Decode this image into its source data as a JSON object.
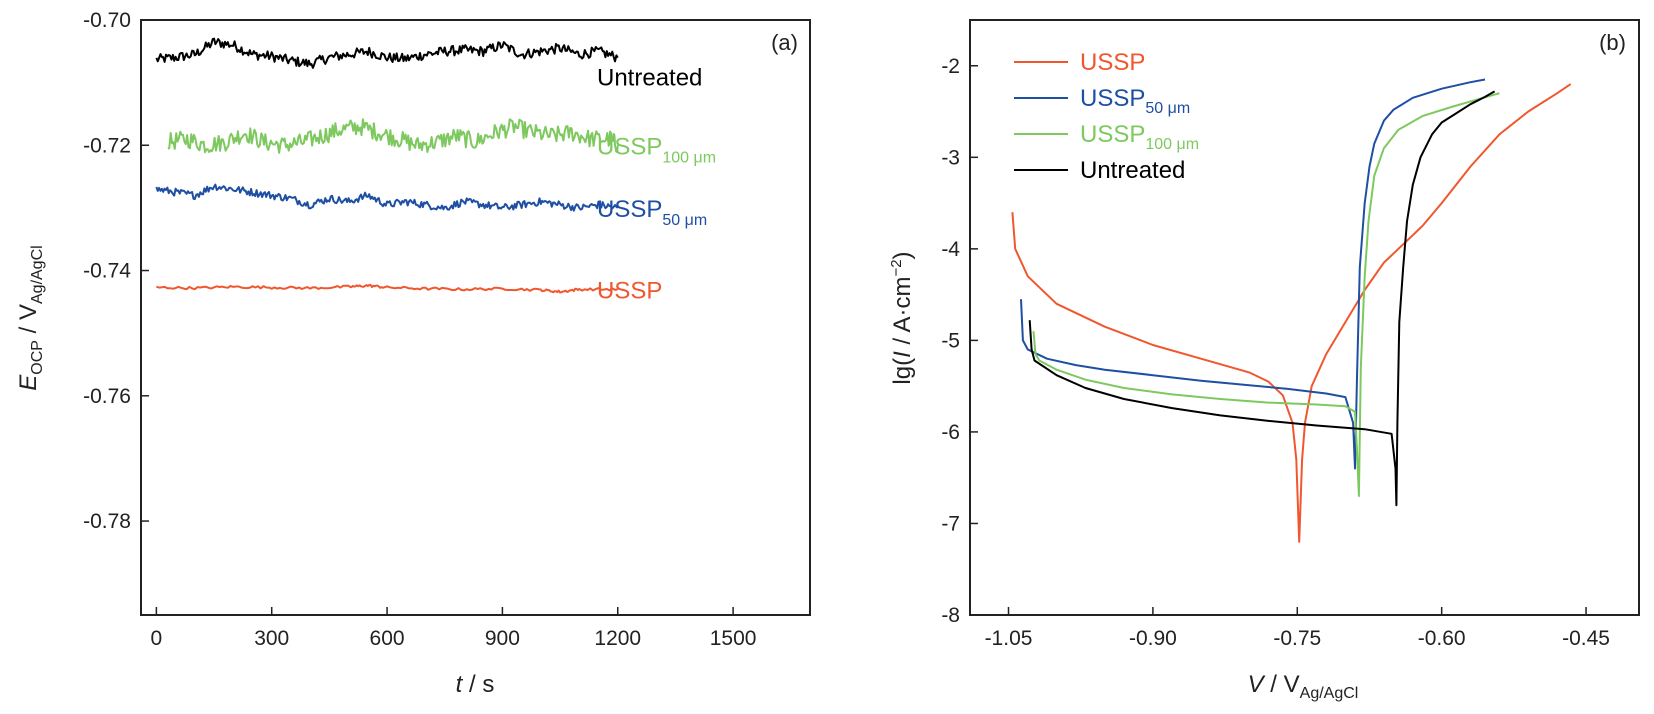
{
  "chart_data": [
    {
      "type": "line",
      "panel_label": "(a)",
      "xlabel_var": "t",
      "xlabel_unit": " / s",
      "ylabel_var": "E",
      "ylabel_var_sub": "OCP",
      "ylabel_unit": " / V",
      "ylabel_unit_sub": "Ag/AgCl",
      "xlim": [
        -40,
        1700
      ],
      "ylim": [
        -0.795,
        -0.7
      ],
      "xticks": [
        0,
        300,
        600,
        900,
        1200,
        1500
      ],
      "xtick_labels": [
        "0",
        "300",
        "600",
        "900",
        "1200",
        "1500"
      ],
      "yticks": [
        -0.7,
        -0.72,
        -0.74,
        -0.76,
        -0.78
      ],
      "ytick_labels": [
        "-0.70",
        "-0.72",
        "-0.74",
        "-0.76",
        "-0.78"
      ],
      "grid": false,
      "legend": "inline labels at right end of each curve",
      "series": [
        {
          "key": "untreated",
          "name": "Untreated",
          "sub": "",
          "color": "#000000",
          "x": [
            0,
            50,
            100,
            150,
            200,
            250,
            300,
            350,
            400,
            450,
            500,
            550,
            600,
            650,
            700,
            750,
            800,
            850,
            900,
            950,
            1000,
            1050,
            1100,
            1150,
            1200
          ],
          "y": [
            -0.7063,
            -0.706,
            -0.7055,
            -0.7035,
            -0.704,
            -0.7055,
            -0.7058,
            -0.7065,
            -0.707,
            -0.706,
            -0.7055,
            -0.705,
            -0.706,
            -0.7062,
            -0.7055,
            -0.705,
            -0.7048,
            -0.705,
            -0.704,
            -0.7055,
            -0.705,
            -0.7045,
            -0.7055,
            -0.705,
            -0.706
          ],
          "noise": 0.0008
        },
        {
          "key": "ussp100",
          "name": "USSP",
          "sub": "100 μm",
          "color": "#7ec95f",
          "x": [
            30,
            80,
            130,
            180,
            230,
            280,
            330,
            380,
            430,
            480,
            530,
            580,
            630,
            680,
            730,
            780,
            830,
            880,
            930,
            980,
            1030,
            1080,
            1130,
            1180,
            1200
          ],
          "y": [
            -0.7195,
            -0.719,
            -0.72,
            -0.7195,
            -0.718,
            -0.7195,
            -0.72,
            -0.7195,
            -0.7185,
            -0.7175,
            -0.717,
            -0.718,
            -0.719,
            -0.72,
            -0.7195,
            -0.7185,
            -0.7195,
            -0.718,
            -0.717,
            -0.718,
            -0.7185,
            -0.718,
            -0.719,
            -0.719,
            -0.72
          ],
          "noise": 0.0014
        },
        {
          "key": "ussp50",
          "name": "USSP",
          "sub": "50 μm",
          "color": "#1f4fa3",
          "x": [
            0,
            50,
            100,
            150,
            200,
            250,
            300,
            350,
            400,
            450,
            500,
            550,
            600,
            650,
            700,
            750,
            800,
            850,
            900,
            950,
            1000,
            1050,
            1100,
            1150,
            1200
          ],
          "y": [
            -0.727,
            -0.7275,
            -0.728,
            -0.7265,
            -0.727,
            -0.7275,
            -0.728,
            -0.7285,
            -0.7295,
            -0.7285,
            -0.729,
            -0.728,
            -0.7295,
            -0.729,
            -0.7295,
            -0.73,
            -0.729,
            -0.7295,
            -0.73,
            -0.7295,
            -0.729,
            -0.7295,
            -0.73,
            -0.7295,
            -0.73
          ],
          "noise": 0.0006
        },
        {
          "key": "ussp",
          "name": "USSP",
          "sub": "",
          "color": "#f0572e",
          "x": [
            0,
            100,
            200,
            300,
            400,
            500,
            550,
            600,
            700,
            800,
            900,
            1000,
            1050,
            1100,
            1200
          ],
          "y": [
            -0.7427,
            -0.7428,
            -0.7426,
            -0.7427,
            -0.7428,
            -0.7426,
            -0.7424,
            -0.7427,
            -0.7429,
            -0.743,
            -0.7429,
            -0.7431,
            -0.7434,
            -0.743,
            -0.743
          ],
          "noise": 0.0002
        }
      ]
    },
    {
      "type": "line",
      "panel_label": "(b)",
      "xlabel_var": "V",
      "xlabel_unit": " / V",
      "xlabel_unit_sub": "Ag/AgCl",
      "ylabel_pre": "lg(",
      "ylabel_var": "I",
      "ylabel_unit": " / A·cm",
      "ylabel_sup": "−2",
      "ylabel_post": ")",
      "xlim": [
        -1.09,
        -0.395
      ],
      "ylim": [
        -8,
        -1.5
      ],
      "xticks": [
        -1.05,
        -0.9,
        -0.75,
        -0.6,
        -0.45
      ],
      "xtick_labels": [
        "-1.05",
        "-0.90",
        "-0.75",
        "-0.60",
        "-0.45"
      ],
      "yticks": [
        -2,
        -3,
        -4,
        -5,
        -6,
        -7,
        -8
      ],
      "ytick_labels": [
        "-2",
        "-3",
        "-4",
        "-5",
        "-6",
        "-7",
        "-8"
      ],
      "grid": false,
      "legend": "top-left",
      "series": [
        {
          "key": "ussp",
          "name": "USSP",
          "sub": "",
          "color": "#f0572e",
          "x": [
            -1.046,
            -1.043,
            -1.03,
            -1.0,
            -0.95,
            -0.9,
            -0.85,
            -0.8,
            -0.78,
            -0.765,
            -0.755,
            -0.751,
            -0.748,
            -0.745,
            -0.742,
            -0.735,
            -0.72,
            -0.7,
            -0.68,
            -0.66,
            -0.64,
            -0.62,
            -0.6,
            -0.57,
            -0.54,
            -0.51,
            -0.48,
            -0.466
          ],
          "y": [
            -3.6,
            -4.0,
            -4.3,
            -4.6,
            -4.85,
            -5.05,
            -5.2,
            -5.35,
            -5.45,
            -5.6,
            -5.9,
            -6.3,
            -7.2,
            -6.3,
            -5.9,
            -5.5,
            -5.15,
            -4.8,
            -4.45,
            -4.15,
            -3.95,
            -3.75,
            -3.5,
            -3.1,
            -2.75,
            -2.5,
            -2.3,
            -2.2
          ]
        },
        {
          "key": "ussp50",
          "name": "USSP",
          "sub": "50 μm",
          "color": "#1f4fa3",
          "x": [
            -1.037,
            -1.035,
            -1.03,
            -1.01,
            -0.98,
            -0.95,
            -0.9,
            -0.85,
            -0.8,
            -0.76,
            -0.72,
            -0.7,
            -0.692,
            -0.69,
            -0.688,
            -0.685,
            -0.68,
            -0.675,
            -0.67,
            -0.66,
            -0.65,
            -0.63,
            -0.6,
            -0.57,
            -0.555
          ],
          "y": [
            -4.55,
            -5.0,
            -5.1,
            -5.2,
            -5.27,
            -5.32,
            -5.38,
            -5.44,
            -5.49,
            -5.53,
            -5.58,
            -5.62,
            -5.9,
            -6.4,
            -5.4,
            -4.2,
            -3.5,
            -3.1,
            -2.85,
            -2.6,
            -2.48,
            -2.35,
            -2.25,
            -2.18,
            -2.15
          ]
        },
        {
          "key": "ussp100",
          "name": "USSP",
          "sub": "100 μm",
          "color": "#7ec95f",
          "x": [
            -1.024,
            -1.022,
            -1.018,
            -1.0,
            -0.97,
            -0.93,
            -0.88,
            -0.83,
            -0.78,
            -0.73,
            -0.7,
            -0.69,
            -0.688,
            -0.686,
            -0.684,
            -0.68,
            -0.676,
            -0.67,
            -0.66,
            -0.645,
            -0.62,
            -0.59,
            -0.56,
            -0.54
          ],
          "y": [
            -4.9,
            -5.15,
            -5.22,
            -5.32,
            -5.43,
            -5.52,
            -5.59,
            -5.64,
            -5.68,
            -5.7,
            -5.72,
            -5.78,
            -6.2,
            -6.7,
            -5.3,
            -4.3,
            -3.7,
            -3.2,
            -2.9,
            -2.7,
            -2.55,
            -2.45,
            -2.36,
            -2.3
          ]
        },
        {
          "key": "untreated",
          "name": "Untreated",
          "sub": "",
          "color": "#000000",
          "x": [
            -1.028,
            -1.026,
            -1.023,
            -1.0,
            -0.97,
            -0.93,
            -0.88,
            -0.83,
            -0.78,
            -0.73,
            -0.68,
            -0.652,
            -0.648,
            -0.647,
            -0.646,
            -0.644,
            -0.64,
            -0.636,
            -0.63,
            -0.622,
            -0.61,
            -0.6,
            -0.585,
            -0.57,
            -0.555,
            -0.545
          ],
          "y": [
            -4.78,
            -5.1,
            -5.22,
            -5.38,
            -5.52,
            -5.64,
            -5.74,
            -5.82,
            -5.88,
            -5.93,
            -5.97,
            -6.02,
            -6.4,
            -6.8,
            -5.9,
            -4.8,
            -4.2,
            -3.7,
            -3.3,
            -3.0,
            -2.75,
            -2.62,
            -2.52,
            -2.42,
            -2.34,
            -2.28
          ]
        }
      ]
    }
  ]
}
